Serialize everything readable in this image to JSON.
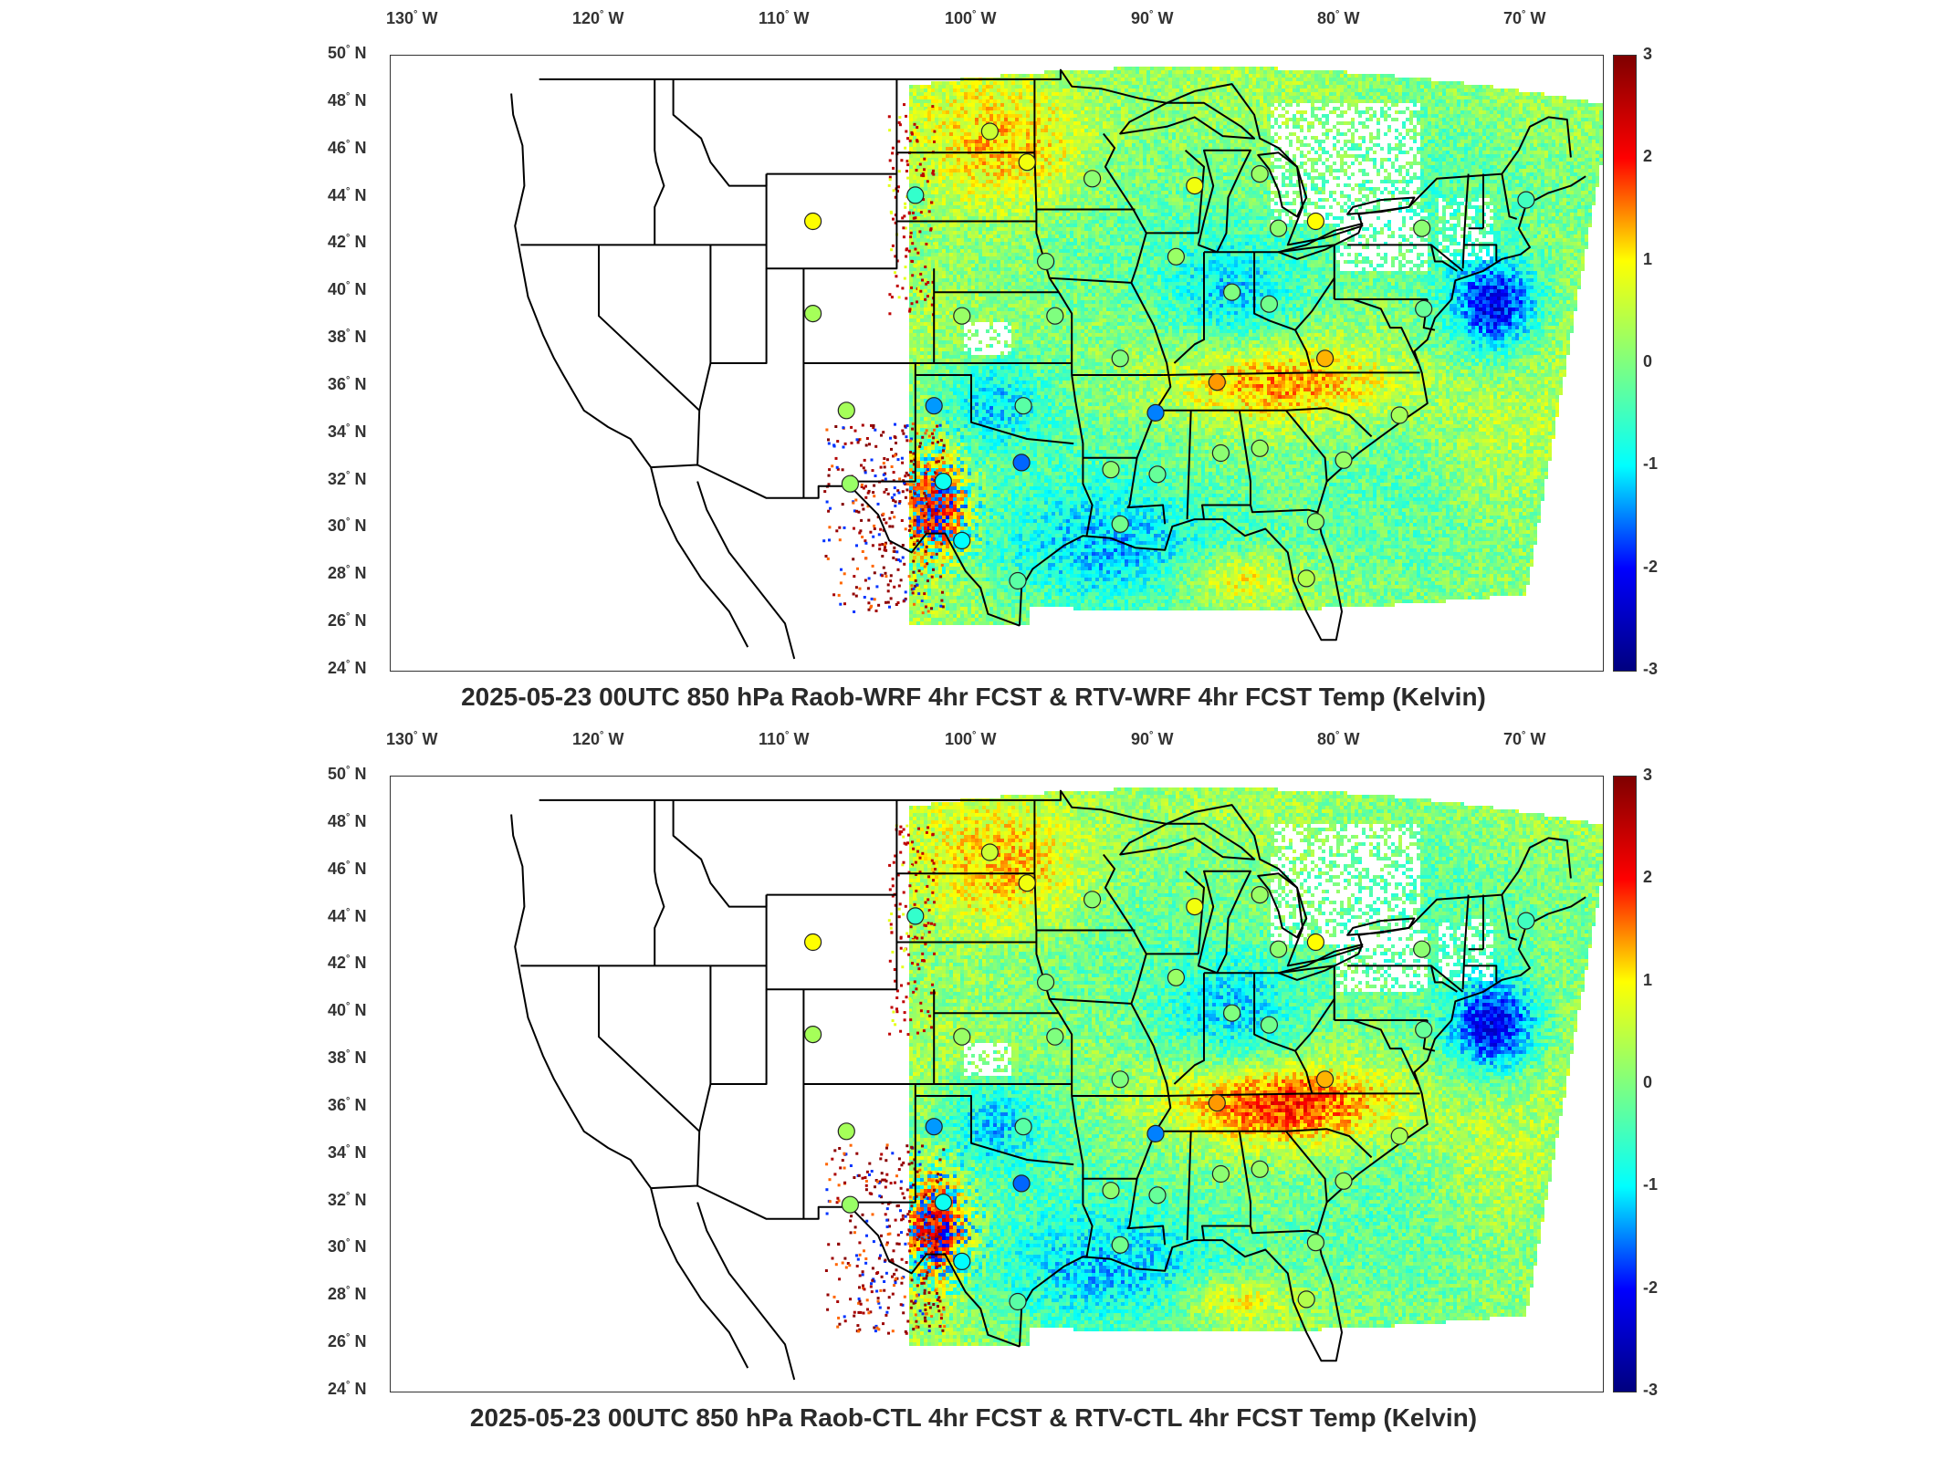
{
  "panels": [
    {
      "title": "2025-05-23 00UTC 850 hPa Raob-WRF 4hr FCST & RTV-WRF 4hr FCST Temp (Kelvin)",
      "variant": "wrf"
    },
    {
      "title": "2025-05-23 00UTC 850 hPa Raob-CTL 4hr FCST & RTV-CTL 4hr FCST Temp (Kelvin)",
      "variant": "ctl"
    }
  ],
  "lon_ticks": [
    "130",
    "120",
    "110",
    "100",
    "90",
    "80",
    "70"
  ],
  "lon_suffix": "W",
  "lat_ticks": [
    "50",
    "48",
    "46",
    "44",
    "42",
    "40",
    "38",
    "36",
    "34",
    "32",
    "30",
    "28",
    "26",
    "24"
  ],
  "lat_suffix": "N",
  "colorbar": {
    "ticks": [
      "3",
      "2",
      "1",
      "0",
      "-1",
      "-2",
      "-3"
    ],
    "min": -3,
    "max": 3,
    "colormap": "jet",
    "unit": "Kelvin"
  },
  "colors": {
    "jet_stops": [
      "#00007f",
      "#0000ff",
      "#00ffff",
      "#7fff7f",
      "#ffff00",
      "#ff0000",
      "#7f0000"
    ],
    "border": "#000000"
  },
  "raob_stations": [
    {
      "lon": -99.0,
      "lat": 46.8,
      "value": 0.6
    },
    {
      "lon": -97.0,
      "lat": 45.5,
      "value": 0.9
    },
    {
      "lon": -93.5,
      "lat": 44.8,
      "value": 0.1
    },
    {
      "lon": -108.5,
      "lat": 43.0,
      "value": 1.0
    },
    {
      "lon": -103.0,
      "lat": 44.1,
      "value": -0.6
    },
    {
      "lon": -96.0,
      "lat": 41.3,
      "value": 0.0
    },
    {
      "lon": -100.5,
      "lat": 39.0,
      "value": 0.2
    },
    {
      "lon": -108.5,
      "lat": 39.1,
      "value": 0.3
    },
    {
      "lon": -95.5,
      "lat": 39.0,
      "value": 0.0
    },
    {
      "lon": -92.0,
      "lat": 37.2,
      "value": 0.0
    },
    {
      "lon": -106.7,
      "lat": 35.0,
      "value": 0.3
    },
    {
      "lon": -97.2,
      "lat": 35.2,
      "value": -0.3
    },
    {
      "lon": -102.0,
      "lat": 35.2,
      "value": -1.4
    },
    {
      "lon": -97.3,
      "lat": 32.8,
      "value": -1.6
    },
    {
      "lon": -106.5,
      "lat": 31.9,
      "value": 0.2
    },
    {
      "lon": -101.5,
      "lat": 32.0,
      "value": -0.9
    },
    {
      "lon": -100.5,
      "lat": 29.5,
      "value": -1.0
    },
    {
      "lon": -97.5,
      "lat": 27.8,
      "value": -0.3
    },
    {
      "lon": -92.5,
      "lat": 32.5,
      "value": 0.1
    },
    {
      "lon": -92.0,
      "lat": 30.2,
      "value": -0.1
    },
    {
      "lon": -90.1,
      "lat": 34.9,
      "value": -1.5
    },
    {
      "lon": -90.0,
      "lat": 32.3,
      "value": -0.2
    },
    {
      "lon": -86.6,
      "lat": 33.2,
      "value": 0.1
    },
    {
      "lon": -84.5,
      "lat": 33.4,
      "value": 0.2
    },
    {
      "lon": -86.8,
      "lat": 36.2,
      "value": 1.4
    },
    {
      "lon": -81.0,
      "lat": 37.2,
      "value": 1.3
    },
    {
      "lon": -89.0,
      "lat": 41.5,
      "value": 0.2
    },
    {
      "lon": -86.0,
      "lat": 40.0,
      "value": 0.0
    },
    {
      "lon": -84.0,
      "lat": 39.5,
      "value": -0.1
    },
    {
      "lon": -83.5,
      "lat": 42.7,
      "value": 0.1
    },
    {
      "lon": -84.5,
      "lat": 45.0,
      "value": 0.2
    },
    {
      "lon": -88.0,
      "lat": 44.5,
      "value": 0.9
    },
    {
      "lon": -81.5,
      "lat": 43.0,
      "value": 1.0
    },
    {
      "lon": -75.8,
      "lat": 42.7,
      "value": 0.1
    },
    {
      "lon": -75.7,
      "lat": 39.3,
      "value": -0.2
    },
    {
      "lon": -77.0,
      "lat": 34.8,
      "value": 0.3
    },
    {
      "lon": -80.0,
      "lat": 32.9,
      "value": 0.2
    },
    {
      "lon": -81.5,
      "lat": 30.3,
      "value": 0.1
    },
    {
      "lon": -82.0,
      "lat": 27.9,
      "value": 0.4
    },
    {
      "lon": -70.2,
      "lat": 43.9,
      "value": -0.5
    }
  ]
}
